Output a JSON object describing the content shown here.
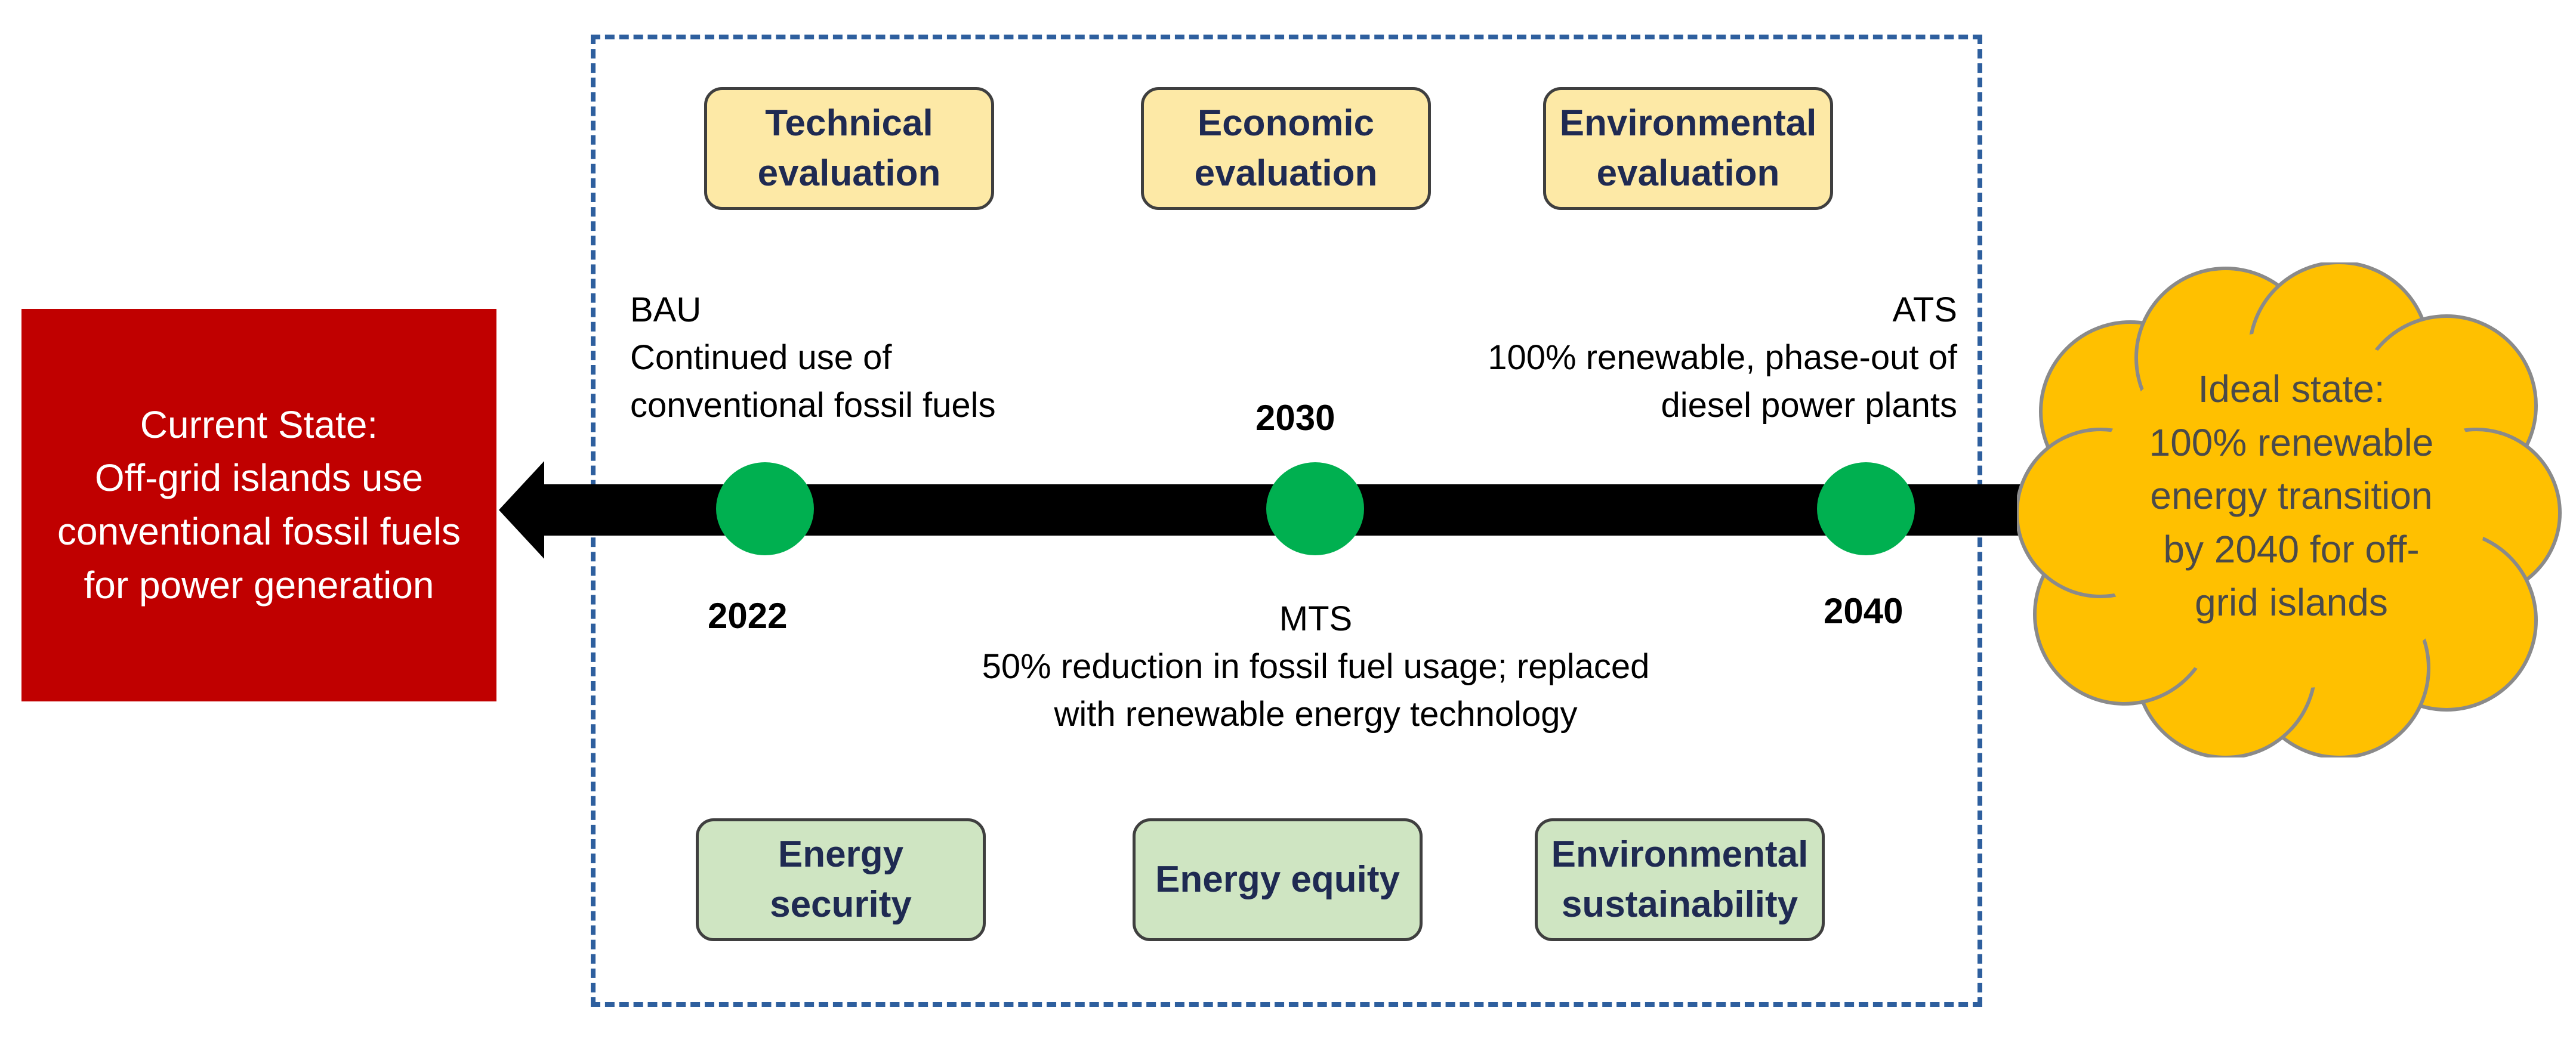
{
  "evaluations": [
    {
      "label": "Technical\nevaluation"
    },
    {
      "label": "Economic\nevaluation"
    },
    {
      "label": "Environmental\nevaluation"
    }
  ],
  "outcomes": [
    {
      "label": "Energy\nsecurity"
    },
    {
      "label": "Energy equity"
    },
    {
      "label": "Environmental\nsustainability"
    }
  ],
  "current_state": {
    "label": "Current State:\nOff-grid islands use\nconventional fossil fuels\nfor power generation"
  },
  "ideal_state": {
    "label": "Ideal state:\n100% renewable\nenergy transition\nby 2040 for off-\ngrid islands"
  },
  "scenarios": {
    "bau": {
      "name": "BAU",
      "description": "Continued use of\nconventional fossil fuels",
      "year": "2022"
    },
    "mts": {
      "name": "MTS",
      "description": "50% reduction in fossil fuel usage; replaced\nwith renewable energy technology",
      "year": "2030"
    },
    "ats": {
      "name": "ATS",
      "description": "100% renewable, phase-out of\ndiesel power plants",
      "year": "2040"
    }
  },
  "colors": {
    "current_state": "#c00000",
    "ideal_state": "#ffc000",
    "milestone": "#00b050",
    "evaluation_box": "#fde9a6",
    "outcome_box": "#cfe5c2",
    "dashed_border": "#2e5f9e"
  }
}
